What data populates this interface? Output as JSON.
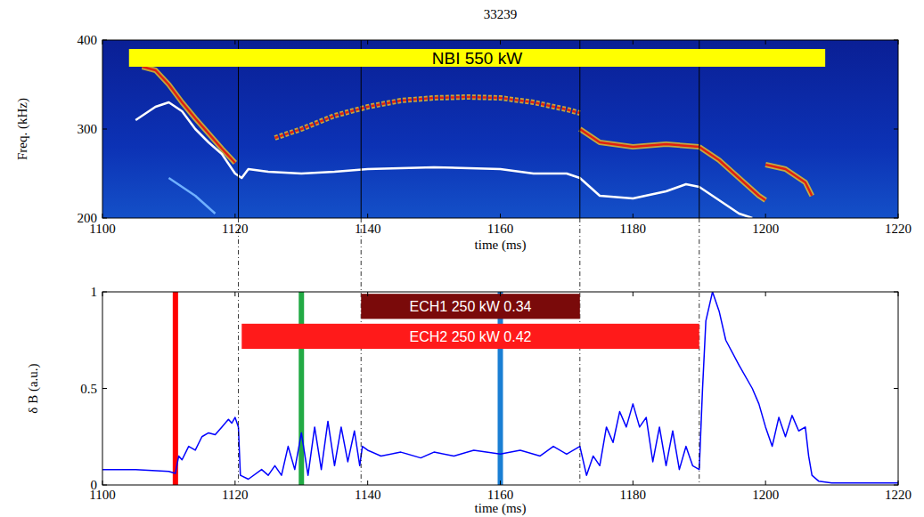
{
  "chart_data": [
    {
      "type": "spectrogram",
      "title": "33239",
      "x_label": "time (ms)",
      "y_label": "Freq. (kHz)",
      "xlim": [
        1100,
        1220
      ],
      "xticks": [
        1100,
        1120,
        1140,
        1160,
        1180,
        1200,
        1220
      ],
      "ylim": [
        200,
        400
      ],
      "yticks": [
        200,
        300,
        400
      ],
      "series": [
        {
          "color": "#e02010",
          "line_style": "solid",
          "x": [
            1106,
            1108,
            1110,
            1112,
            1114,
            1116,
            1118,
            1120
          ],
          "values": [
            370,
            366,
            350,
            330,
            312,
            295,
            278,
            262
          ]
        },
        {
          "color": "#e02010",
          "line_style": "dashed",
          "x": [
            1126,
            1130,
            1135,
            1140,
            1145,
            1150,
            1155,
            1160,
            1165,
            1170,
            1172
          ],
          "values": [
            290,
            300,
            315,
            325,
            332,
            335,
            336,
            335,
            330,
            322,
            318
          ]
        },
        {
          "color": "#e02010",
          "line_style": "solid",
          "x": [
            1172,
            1175,
            1180,
            1185,
            1190
          ],
          "values": [
            300,
            285,
            280,
            283,
            280
          ]
        },
        {
          "color": "#e02010",
          "line_style": "solid",
          "x": [
            1190,
            1193,
            1196,
            1199,
            1200
          ],
          "values": [
            280,
            265,
            245,
            225,
            220
          ]
        },
        {
          "color": "#e02010",
          "line_style": "solid",
          "x": [
            1200,
            1203,
            1206,
            1207
          ],
          "values": [
            260,
            255,
            240,
            225
          ]
        },
        {
          "color": "#6fb0ff",
          "line_style": "solid",
          "x": [
            1110,
            1114,
            1117
          ],
          "values": [
            245,
            225,
            205
          ]
        },
        {
          "color": "#ffffff",
          "line_style": "solid",
          "x": [
            1105,
            1108,
            1110,
            1112,
            1114,
            1116,
            1118,
            1120,
            1121,
            1122,
            1125,
            1130,
            1135,
            1140,
            1150,
            1160,
            1165,
            1170,
            1172,
            1175,
            1180,
            1185,
            1188,
            1190,
            1193,
            1196,
            1198
          ],
          "values": [
            310,
            325,
            330,
            320,
            300,
            285,
            272,
            250,
            245,
            255,
            252,
            250,
            252,
            255,
            257,
            255,
            250,
            250,
            245,
            225,
            222,
            230,
            238,
            235,
            220,
            205,
            200
          ]
        }
      ],
      "bands": [
        {
          "label": "NBI 550 kW",
          "start": 1104,
          "end": 1209,
          "color": "#ffff00"
        }
      ],
      "vlines": [
        1120.5,
        1139,
        1172,
        1190
      ]
    },
    {
      "type": "line",
      "x_label": "time (ms)",
      "y_label": "δ B (a.u.)",
      "xlim": [
        1100,
        1220
      ],
      "xticks": [
        1100,
        1120,
        1140,
        1160,
        1180,
        1200,
        1220
      ],
      "ylim": [
        0,
        1
      ],
      "yticks": [
        0,
        0.5,
        1
      ],
      "series": [
        {
          "color": "#0000ff",
          "line_style": "solid",
          "x": [
            1100,
            1105,
            1110,
            1111,
            1111.5,
            1112,
            1113,
            1114,
            1115,
            1116,
            1117,
            1118,
            1119,
            1119.5,
            1120,
            1120.5,
            1120.8,
            1122,
            1124,
            1125,
            1126,
            1127,
            1128,
            1129,
            1130,
            1131,
            1132,
            1133,
            1134,
            1135,
            1136,
            1137,
            1138,
            1138.8,
            1139.2,
            1140,
            1142,
            1145,
            1148,
            1150,
            1153,
            1156,
            1160,
            1163,
            1166,
            1168,
            1170,
            1172,
            1173,
            1174,
            1175,
            1176,
            1177,
            1178,
            1179,
            1180,
            1181,
            1182,
            1183,
            1184,
            1185,
            1186,
            1187,
            1188,
            1189,
            1190,
            1190.5,
            1191,
            1192,
            1193,
            1194,
            1196,
            1198,
            1199,
            1200,
            1201,
            1202,
            1203,
            1204,
            1205,
            1206,
            1206.5,
            1207,
            1208,
            1210,
            1220
          ],
          "values": [
            0.08,
            0.08,
            0.07,
            0.06,
            0.15,
            0.13,
            0.2,
            0.18,
            0.25,
            0.27,
            0.26,
            0.3,
            0.34,
            0.32,
            0.35,
            0.3,
            0.05,
            0.03,
            0.08,
            0.05,
            0.1,
            0.05,
            0.2,
            0.08,
            0.27,
            0.05,
            0.3,
            0.08,
            0.33,
            0.1,
            0.3,
            0.12,
            0.28,
            0.1,
            0.2,
            0.18,
            0.15,
            0.17,
            0.14,
            0.17,
            0.15,
            0.18,
            0.16,
            0.18,
            0.15,
            0.2,
            0.16,
            0.2,
            0.05,
            0.15,
            0.1,
            0.3,
            0.22,
            0.38,
            0.3,
            0.42,
            0.3,
            0.35,
            0.12,
            0.3,
            0.1,
            0.28,
            0.08,
            0.2,
            0.1,
            0.08,
            0.5,
            0.85,
            1.0,
            0.9,
            0.75,
            0.62,
            0.5,
            0.42,
            0.3,
            0.2,
            0.35,
            0.25,
            0.36,
            0.28,
            0.3,
            0.15,
            0.05,
            0.02,
            0.01,
            0.01
          ]
        }
      ],
      "bands": [
        {
          "label": "ECH1 250 kW 0.34",
          "start": 1139,
          "end": 1172,
          "color": "#7a0a0a"
        },
        {
          "label": "ECH2 250 kW 0.42",
          "start": 1121,
          "end": 1190,
          "color": "#ff1a1a"
        }
      ],
      "markers": [
        {
          "x": 1111,
          "color": "#ff0000"
        },
        {
          "x": 1130,
          "color": "#22aa44"
        },
        {
          "x": 1160,
          "color": "#1a7fd4"
        }
      ],
      "vlines": [
        1120.5,
        1139,
        1172,
        1190
      ]
    }
  ]
}
